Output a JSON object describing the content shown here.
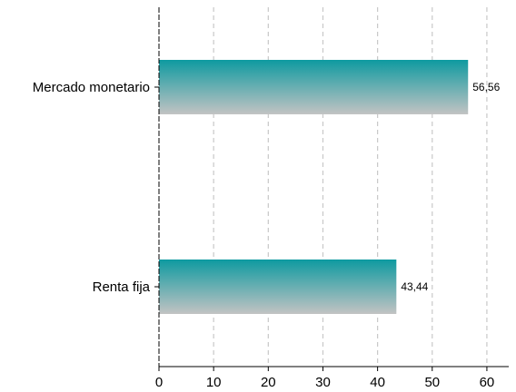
{
  "chart_data": {
    "type": "bar",
    "orientation": "horizontal",
    "categories": [
      "Mercado monetario",
      "Renta fija"
    ],
    "values": [
      56.56,
      43.44
    ],
    "value_labels": [
      "56,56",
      "43,44"
    ],
    "xlim": [
      0,
      64
    ],
    "x_ticks": [
      0,
      10,
      20,
      30,
      40,
      50,
      60
    ],
    "x_tick_labels": [
      "0",
      "10",
      "20",
      "30",
      "40",
      "50",
      "60"
    ],
    "grid": "vertical dashed",
    "colors": {
      "bar_top": "#0e9aa0",
      "bar_bottom": "#c3c3c3",
      "grid": "#c8c8c8",
      "axis": "#000000"
    }
  }
}
